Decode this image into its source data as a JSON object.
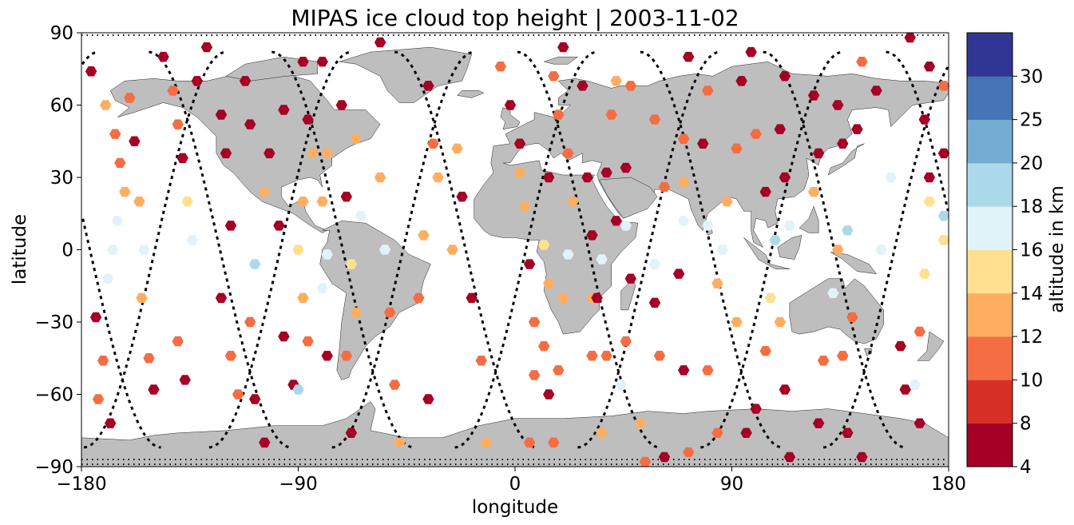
{
  "chart_data": {
    "type": "scatter",
    "title": "MIPAS ice cloud top height | 2003-11-02",
    "xlabel": "longitude",
    "ylabel": "latitude",
    "xlim": [
      -180,
      180
    ],
    "ylim": [
      -90,
      90
    ],
    "x_ticks": [
      -180,
      -90,
      0,
      90,
      180
    ],
    "x_tick_labels": [
      "−180",
      "−90",
      "0",
      "90",
      "180"
    ],
    "y_ticks": [
      -90,
      -60,
      -30,
      0,
      30,
      60,
      90
    ],
    "y_tick_labels": [
      "−90",
      "−60",
      "−30",
      "0",
      "30",
      "60",
      "90"
    ],
    "colorbar": {
      "label": "altitude in km",
      "boundaries": [
        4,
        8,
        10,
        12,
        14,
        16,
        18,
        20,
        25,
        30
      ],
      "tick_labels": [
        "4",
        "8",
        "10",
        "12",
        "14",
        "16",
        "18",
        "20",
        "25",
        "30"
      ],
      "colors": [
        "#a50026",
        "#d73027",
        "#f46d43",
        "#fdae61",
        "#fee090",
        "#e0f3f8",
        "#abd9e9",
        "#74add1",
        "#4575b4",
        "#313695"
      ]
    },
    "land_color": "#bebebe",
    "track_color": "#000000",
    "tracks": [
      {
        "lon0": -179,
        "lon_end": -120
      },
      {
        "lon0": -152,
        "lon_end": -93
      },
      {
        "lon0": -127,
        "lon_end": -68
      },
      {
        "lon0": -101,
        "lon_end": -42
      },
      {
        "lon0": -76,
        "lon_end": -17
      },
      {
        "lon0": -50,
        "lon_end": 9
      },
      {
        "lon0": -25,
        "lon_end": 34
      },
      {
        "lon0": 1,
        "lon_end": 60
      },
      {
        "lon0": 26,
        "lon_end": 85
      },
      {
        "lon0": 52,
        "lon_end": 111
      },
      {
        "lon0": 77,
        "lon_end": 136
      },
      {
        "lon0": 103,
        "lon_end": 162
      },
      {
        "lon0": 128,
        "lon_end": 187
      },
      {
        "lon0": 154,
        "lon_end": 213
      }
    ],
    "points": [
      {
        "lon": -176,
        "lat": 74,
        "alt": 6
      },
      {
        "lon": -170,
        "lat": 60,
        "alt": 13
      },
      {
        "lon": -166,
        "lat": 48,
        "alt": 11
      },
      {
        "lon": -164,
        "lat": 36,
        "alt": 11
      },
      {
        "lon": -162,
        "lat": 24,
        "alt": 13
      },
      {
        "lon": -165,
        "lat": 12,
        "alt": 17
      },
      {
        "lon": -167,
        "lat": 0,
        "alt": 17
      },
      {
        "lon": -169,
        "lat": -12,
        "alt": 17
      },
      {
        "lon": -174,
        "lat": -28,
        "alt": 6
      },
      {
        "lon": -171,
        "lat": -46,
        "alt": 11
      },
      {
        "lon": -173,
        "lat": -62,
        "alt": 11
      },
      {
        "lon": -168,
        "lat": -72,
        "alt": 6
      },
      {
        "lon": -160,
        "lat": 63,
        "alt": 11
      },
      {
        "lon": -158,
        "lat": 45,
        "alt": 6
      },
      {
        "lon": -156,
        "lat": 20,
        "alt": 13
      },
      {
        "lon": -154,
        "lat": 0,
        "alt": 17
      },
      {
        "lon": -155,
        "lat": -20,
        "alt": 13
      },
      {
        "lon": -152,
        "lat": -45,
        "alt": 11
      },
      {
        "lon": -150,
        "lat": -58,
        "alt": 6
      },
      {
        "lon": -146,
        "lat": 80,
        "alt": 6
      },
      {
        "lon": -142,
        "lat": 66,
        "alt": 11
      },
      {
        "lon": -140,
        "lat": 52,
        "alt": 11
      },
      {
        "lon": -138,
        "lat": 38,
        "alt": 6
      },
      {
        "lon": -136,
        "lat": 20,
        "alt": 15
      },
      {
        "lon": -134,
        "lat": 4,
        "alt": 17
      },
      {
        "lon": -140,
        "lat": -38,
        "alt": 11
      },
      {
        "lon": -137,
        "lat": -54,
        "alt": 6
      },
      {
        "lon": -132,
        "lat": 70,
        "alt": 6
      },
      {
        "lon": -128,
        "lat": 84,
        "alt": 6
      },
      {
        "lon": -122,
        "lat": 56,
        "alt": 6
      },
      {
        "lon": -120,
        "lat": 40,
        "alt": 6
      },
      {
        "lon": -118,
        "lat": 10,
        "alt": 6
      },
      {
        "lon": -122,
        "lat": -20,
        "alt": 6
      },
      {
        "lon": -118,
        "lat": -44,
        "alt": 11
      },
      {
        "lon": -115,
        "lat": -60,
        "alt": 11
      },
      {
        "lon": -112,
        "lat": 70,
        "alt": 6
      },
      {
        "lon": -110,
        "lat": 52,
        "alt": 6
      },
      {
        "lon": -104,
        "lat": 24,
        "alt": 13
      },
      {
        "lon": -108,
        "lat": -6,
        "alt": 18
      },
      {
        "lon": -110,
        "lat": -30,
        "alt": 11
      },
      {
        "lon": -108,
        "lat": -62,
        "alt": 6
      },
      {
        "lon": -102,
        "lat": 40,
        "alt": 6
      },
      {
        "lon": -104,
        "lat": -80,
        "alt": 6
      },
      {
        "lon": -96,
        "lat": 58,
        "alt": 6
      },
      {
        "lon": -98,
        "lat": 10,
        "alt": 6
      },
      {
        "lon": -96,
        "lat": -36,
        "alt": 6
      },
      {
        "lon": -92,
        "lat": -56,
        "alt": 6
      },
      {
        "lon": -88,
        "lat": 78,
        "alt": 6
      },
      {
        "lon": -86,
        "lat": 54,
        "alt": 6
      },
      {
        "lon": -84,
        "lat": 40,
        "alt": 13
      },
      {
        "lon": -88,
        "lat": 20,
        "alt": 13
      },
      {
        "lon": -90,
        "lat": 0,
        "alt": 15
      },
      {
        "lon": -88,
        "lat": -20,
        "alt": 13
      },
      {
        "lon": -86,
        "lat": -38,
        "alt": 11
      },
      {
        "lon": -90,
        "lat": -58,
        "alt": 18
      },
      {
        "lon": -80,
        "lat": 78,
        "alt": 6
      },
      {
        "lon": -78,
        "lat": 40,
        "alt": 13
      },
      {
        "lon": -80,
        "lat": 20,
        "alt": 13
      },
      {
        "lon": -78,
        "lat": -2,
        "alt": 17
      },
      {
        "lon": -80,
        "lat": -16,
        "alt": 17
      },
      {
        "lon": -78,
        "lat": -44,
        "alt": 6
      },
      {
        "lon": -72,
        "lat": 60,
        "alt": 6
      },
      {
        "lon": -66,
        "lat": 46,
        "alt": 13
      },
      {
        "lon": -70,
        "lat": 22,
        "alt": 6
      },
      {
        "lon": -64,
        "lat": 14,
        "alt": 17
      },
      {
        "lon": -68,
        "lat": -6,
        "alt": 15
      },
      {
        "lon": -66,
        "lat": -26,
        "alt": 13
      },
      {
        "lon": -70,
        "lat": -44,
        "alt": 11
      },
      {
        "lon": -68,
        "lat": -76,
        "alt": 6
      },
      {
        "lon": -56,
        "lat": 86,
        "alt": 6
      },
      {
        "lon": -56,
        "lat": 30,
        "alt": 13
      },
      {
        "lon": -54,
        "lat": 0,
        "alt": 17
      },
      {
        "lon": -52,
        "lat": -26,
        "alt": 11
      },
      {
        "lon": -50,
        "lat": -56,
        "alt": 11
      },
      {
        "lon": -48,
        "lat": -80,
        "alt": 13
      },
      {
        "lon": -36,
        "lat": 68,
        "alt": 6
      },
      {
        "lon": -34,
        "lat": 44,
        "alt": 11
      },
      {
        "lon": -32,
        "lat": 30,
        "alt": 13
      },
      {
        "lon": -38,
        "lat": 6,
        "alt": 13
      },
      {
        "lon": -40,
        "lat": -20,
        "alt": 11
      },
      {
        "lon": -36,
        "lat": -62,
        "alt": 6
      },
      {
        "lon": -24,
        "lat": 42,
        "alt": 13
      },
      {
        "lon": -22,
        "lat": 22,
        "alt": 6
      },
      {
        "lon": -26,
        "lat": 0,
        "alt": 13
      },
      {
        "lon": -18,
        "lat": -20,
        "alt": 6
      },
      {
        "lon": -14,
        "lat": -46,
        "alt": 11
      },
      {
        "lon": -12,
        "lat": -80,
        "alt": 13
      },
      {
        "lon": -6,
        "lat": 76,
        "alt": 11
      },
      {
        "lon": -2,
        "lat": 60,
        "alt": 6
      },
      {
        "lon": 2,
        "lat": 44,
        "alt": 6
      },
      {
        "lon": 2,
        "lat": 32,
        "alt": 13
      },
      {
        "lon": 4,
        "lat": 18,
        "alt": 13
      },
      {
        "lon": 6,
        "lat": -6,
        "alt": 6
      },
      {
        "lon": 8,
        "lat": -30,
        "alt": 11
      },
      {
        "lon": 8,
        "lat": -52,
        "alt": 11
      },
      {
        "lon": 6,
        "lat": -80,
        "alt": 11
      },
      {
        "lon": 16,
        "lat": 72,
        "alt": 11
      },
      {
        "lon": 14,
        "lat": 30,
        "alt": 6
      },
      {
        "lon": 12,
        "lat": 2,
        "alt": 15
      },
      {
        "lon": 14,
        "lat": -14,
        "alt": 13
      },
      {
        "lon": 12,
        "lat": -40,
        "alt": 11
      },
      {
        "lon": 14,
        "lat": -60,
        "alt": 6
      },
      {
        "lon": 20,
        "lat": 84,
        "alt": 6
      },
      {
        "lon": 18,
        "lat": 56,
        "alt": 11
      },
      {
        "lon": 22,
        "lat": 40,
        "alt": 11
      },
      {
        "lon": 24,
        "lat": 20,
        "alt": 13
      },
      {
        "lon": 22,
        "lat": -2,
        "alt": 17
      },
      {
        "lon": 20,
        "lat": -20,
        "alt": 13
      },
      {
        "lon": 18,
        "lat": -50,
        "alt": 11
      },
      {
        "lon": 16,
        "lat": -80,
        "alt": 11
      },
      {
        "lon": 28,
        "lat": 68,
        "alt": 6
      },
      {
        "lon": 30,
        "lat": 30,
        "alt": 6
      },
      {
        "lon": 32,
        "lat": 6,
        "alt": 6
      },
      {
        "lon": 32,
        "lat": -20,
        "alt": 13
      },
      {
        "lon": 32,
        "lat": -44,
        "alt": 11
      },
      {
        "lon": 36,
        "lat": -76,
        "alt": 13
      },
      {
        "lon": 42,
        "lat": 70,
        "alt": 13
      },
      {
        "lon": 40,
        "lat": 56,
        "alt": 11
      },
      {
        "lon": 38,
        "lat": 32,
        "alt": 6
      },
      {
        "lon": 42,
        "lat": 12,
        "alt": 6
      },
      {
        "lon": 36,
        "lat": -4,
        "alt": 17
      },
      {
        "lon": 34,
        "lat": -20,
        "alt": 6
      },
      {
        "lon": 38,
        "lat": -44,
        "alt": 11
      },
      {
        "lon": 44,
        "lat": -56,
        "alt": 17
      },
      {
        "lon": 48,
        "lat": 68,
        "alt": 11
      },
      {
        "lon": 46,
        "lat": 34,
        "alt": 6
      },
      {
        "lon": 46,
        "lat": 10,
        "alt": 17
      },
      {
        "lon": 48,
        "lat": -12,
        "alt": 6
      },
      {
        "lon": 46,
        "lat": -38,
        "alt": 11
      },
      {
        "lon": 52,
        "lat": -72,
        "alt": 13
      },
      {
        "lon": 54,
        "lat": -88,
        "alt": 11
      },
      {
        "lon": 58,
        "lat": 54,
        "alt": 11
      },
      {
        "lon": 62,
        "lat": 26,
        "alt": 11
      },
      {
        "lon": 58,
        "lat": -6,
        "alt": 17
      },
      {
        "lon": 58,
        "lat": -22,
        "alt": 6
      },
      {
        "lon": 60,
        "lat": -44,
        "alt": 11
      },
      {
        "lon": 62,
        "lat": -86,
        "alt": 6
      },
      {
        "lon": 72,
        "lat": 80,
        "alt": 6
      },
      {
        "lon": 70,
        "lat": 46,
        "alt": 11
      },
      {
        "lon": 70,
        "lat": 28,
        "alt": 13
      },
      {
        "lon": 70,
        "lat": 12,
        "alt": 17
      },
      {
        "lon": 68,
        "lat": -10,
        "alt": 6
      },
      {
        "lon": 70,
        "lat": -50,
        "alt": 6
      },
      {
        "lon": 72,
        "lat": -84,
        "alt": 11
      },
      {
        "lon": 80,
        "lat": 66,
        "alt": 11
      },
      {
        "lon": 78,
        "lat": 44,
        "alt": 6
      },
      {
        "lon": 80,
        "lat": 10,
        "alt": 17
      },
      {
        "lon": 84,
        "lat": -14,
        "alt": 13
      },
      {
        "lon": 80,
        "lat": -50,
        "alt": 11
      },
      {
        "lon": 84,
        "lat": -76,
        "alt": 11
      },
      {
        "lon": 94,
        "lat": 70,
        "alt": 6
      },
      {
        "lon": 92,
        "lat": 42,
        "alt": 11
      },
      {
        "lon": 88,
        "lat": 20,
        "alt": 13
      },
      {
        "lon": 86,
        "lat": 0,
        "alt": 17
      },
      {
        "lon": 92,
        "lat": -30,
        "alt": 13
      },
      {
        "lon": 96,
        "lat": -76,
        "alt": 6
      },
      {
        "lon": 98,
        "lat": 82,
        "alt": 6
      },
      {
        "lon": 100,
        "lat": 48,
        "alt": 11
      },
      {
        "lon": 104,
        "lat": 24,
        "alt": 6
      },
      {
        "lon": 108,
        "lat": 4,
        "alt": 18
      },
      {
        "lon": 106,
        "lat": -20,
        "alt": 15
      },
      {
        "lon": 104,
        "lat": -42,
        "alt": 11
      },
      {
        "lon": 100,
        "lat": -66,
        "alt": 6
      },
      {
        "lon": 112,
        "lat": 72,
        "alt": 6
      },
      {
        "lon": 110,
        "lat": 50,
        "alt": 6
      },
      {
        "lon": 112,
        "lat": 30,
        "alt": 6
      },
      {
        "lon": 114,
        "lat": 10,
        "alt": 17
      },
      {
        "lon": 110,
        "lat": -30,
        "alt": 13
      },
      {
        "lon": 112,
        "lat": -58,
        "alt": 6
      },
      {
        "lon": 114,
        "lat": -86,
        "alt": 6
      },
      {
        "lon": 124,
        "lat": 64,
        "alt": 6
      },
      {
        "lon": 126,
        "lat": 40,
        "alt": 6
      },
      {
        "lon": 124,
        "lat": 24,
        "alt": 13
      },
      {
        "lon": 128,
        "lat": -46,
        "alt": 11
      },
      {
        "lon": 126,
        "lat": -72,
        "alt": 6
      },
      {
        "lon": 134,
        "lat": 60,
        "alt": 6
      },
      {
        "lon": 136,
        "lat": 44,
        "alt": 6
      },
      {
        "lon": 134,
        "lat": 0,
        "alt": 13
      },
      {
        "lon": 132,
        "lat": -18,
        "alt": 17
      },
      {
        "lon": 136,
        "lat": -44,
        "alt": 11
      },
      {
        "lon": 138,
        "lat": -76,
        "alt": 6
      },
      {
        "lon": 144,
        "lat": 78,
        "alt": 11
      },
      {
        "lon": 142,
        "lat": 50,
        "alt": 6
      },
      {
        "lon": 138,
        "lat": 8,
        "alt": 18
      },
      {
        "lon": 140,
        "lat": -28,
        "alt": 11
      },
      {
        "lon": 144,
        "lat": -86,
        "alt": 6
      },
      {
        "lon": 150,
        "lat": 66,
        "alt": 6
      },
      {
        "lon": 156,
        "lat": 30,
        "alt": 17
      },
      {
        "lon": 152,
        "lat": 0,
        "alt": 17
      },
      {
        "lon": 160,
        "lat": -40,
        "alt": 6
      },
      {
        "lon": 162,
        "lat": -58,
        "alt": 6
      },
      {
        "lon": 164,
        "lat": 88,
        "alt": 6
      },
      {
        "lon": 172,
        "lat": 76,
        "alt": 6
      },
      {
        "lon": 170,
        "lat": 54,
        "alt": 6
      },
      {
        "lon": 172,
        "lat": 30,
        "alt": 6
      },
      {
        "lon": 172,
        "lat": 20,
        "alt": 15
      },
      {
        "lon": 170,
        "lat": -10,
        "alt": 15
      },
      {
        "lon": 168,
        "lat": -34,
        "alt": 11
      },
      {
        "lon": 166,
        "lat": -56,
        "alt": 17
      },
      {
        "lon": 168,
        "lat": -72,
        "alt": 6
      },
      {
        "lon": 178,
        "lat": 68,
        "alt": 11
      },
      {
        "lon": 178,
        "lat": 40,
        "alt": 6
      },
      {
        "lon": 178,
        "lat": 14,
        "alt": 18
      },
      {
        "lon": 178,
        "lat": 4,
        "alt": 15
      }
    ]
  }
}
